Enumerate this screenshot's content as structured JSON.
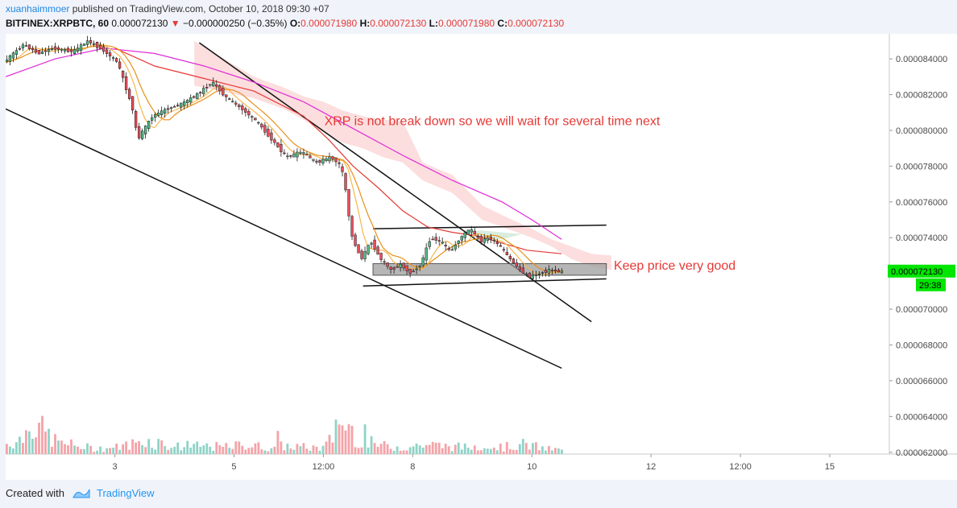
{
  "header": {
    "author": "xuanhaimmoer",
    "published_text": "published on TradingView.com, October 10, 2018 09:30 +07",
    "symbol": "BITFINEX:XRPBTC, 60",
    "last": "0.000072130",
    "change_arrow": "▼",
    "change": "−0.000000250 (−0.35%)",
    "open_label": "O:",
    "open": "0.000071980",
    "high_label": "H:",
    "high": "0.000072130",
    "low_label": "L:",
    "low": "0.000071980",
    "close_label": "C:",
    "close": "0.000072130"
  },
  "footer": {
    "created_with": "Created with",
    "brand": "TradingView"
  },
  "colors": {
    "up": "#53b987",
    "down": "#eb4d5c",
    "vol_up": "#8fd3c7",
    "vol_down": "#f4a3a8",
    "price_badge": "#00e600",
    "annotation": "#e53935",
    "sma_magenta": "#e02bd8",
    "ma_red": "#e53935",
    "ema_orange": "#f5a623",
    "cloud": "#fbd3d3"
  },
  "chart_data": {
    "type": "candlestick",
    "title": "BITFINEX:XRPBTC, 60",
    "x_labels": [
      {
        "t": 22,
        "label": "3"
      },
      {
        "t": 46,
        "label": "5"
      },
      {
        "t": 64,
        "label": "12:00"
      },
      {
        "t": 82,
        "label": "8"
      },
      {
        "t": 106,
        "label": "10"
      },
      {
        "t": 130,
        "label": "12"
      },
      {
        "t": 148,
        "label": "12:00"
      },
      {
        "t": 166,
        "label": "15"
      }
    ],
    "x_range": [
      0,
      178
    ],
    "ylim": [
      6.19e-05,
      8.54e-05
    ],
    "y_ticks": [
      "0.000084000",
      "0.000082000",
      "0.000080000",
      "0.000078000",
      "0.000076000",
      "0.000074000",
      "0.000072000",
      "0.000070000",
      "0.000068000",
      "0.000066000",
      "0.000064000",
      "0.000062000"
    ],
    "y_tick_values": [
      8.4e-05,
      8.2e-05,
      8e-05,
      7.8e-05,
      7.6e-05,
      7.4e-05,
      7.2e-05,
      7e-05,
      6.8e-05,
      6.6e-05,
      6.4e-05,
      6.2e-05
    ],
    "current_price": {
      "value": 7.213e-05,
      "label": "0.000072130",
      "countdown": "29:38"
    },
    "close_path": [
      [
        0,
        8.38e-05
      ],
      [
        4,
        8.48e-05
      ],
      [
        7,
        8.43e-05
      ],
      [
        10,
        8.46e-05
      ],
      [
        14,
        8.44e-05
      ],
      [
        17,
        8.5e-05
      ],
      [
        20,
        8.45e-05
      ],
      [
        23,
        8.38e-05
      ],
      [
        26,
        8.12e-05
      ],
      [
        27,
        7.95e-05
      ],
      [
        30,
        8.08e-05
      ],
      [
        33,
        8.12e-05
      ],
      [
        36,
        8.15e-05
      ],
      [
        39,
        8.2e-05
      ],
      [
        42,
        8.27e-05
      ],
      [
        45,
        8.18e-05
      ],
      [
        48,
        8.12e-05
      ],
      [
        51,
        8.05e-05
      ],
      [
        54,
        7.95e-05
      ],
      [
        57,
        7.85e-05
      ],
      [
        60,
        7.88e-05
      ],
      [
        63,
        7.82e-05
      ],
      [
        66,
        7.85e-05
      ],
      [
        68,
        7.8e-05
      ],
      [
        69,
        7.65e-05
      ],
      [
        70,
        7.42e-05
      ],
      [
        72,
        7.28e-05
      ],
      [
        74,
        7.38e-05
      ],
      [
        76,
        7.28e-05
      ],
      [
        78,
        7.22e-05
      ],
      [
        80,
        7.25e-05
      ],
      [
        82,
        7.2e-05
      ],
      [
        84,
        7.25e-05
      ],
      [
        86,
        7.4e-05
      ],
      [
        88,
        7.38e-05
      ],
      [
        90,
        7.32e-05
      ],
      [
        92,
        7.4e-05
      ],
      [
        94,
        7.45e-05
      ],
      [
        96,
        7.38e-05
      ],
      [
        98,
        7.4e-05
      ],
      [
        100,
        7.35e-05
      ],
      [
        102,
        7.28e-05
      ],
      [
        104,
        7.22e-05
      ],
      [
        106,
        7.18e-05
      ],
      [
        108,
        7.2e-05
      ],
      [
        110,
        7.22e-05
      ],
      [
        112,
        7.21e-05
      ]
    ],
    "volume_profile": [
      [
        0,
        15
      ],
      [
        3,
        22
      ],
      [
        5,
        45
      ],
      [
        8,
        30
      ],
      [
        10,
        18
      ],
      [
        14,
        12
      ],
      [
        18,
        8
      ],
      [
        22,
        10
      ],
      [
        25,
        14
      ],
      [
        27,
        20
      ],
      [
        30,
        18
      ],
      [
        33,
        12
      ],
      [
        36,
        10
      ],
      [
        40,
        12
      ],
      [
        44,
        10
      ],
      [
        48,
        14
      ],
      [
        52,
        10
      ],
      [
        56,
        12
      ],
      [
        60,
        10
      ],
      [
        64,
        9
      ],
      [
        68,
        48
      ],
      [
        70,
        30
      ],
      [
        72,
        18
      ],
      [
        76,
        12
      ],
      [
        80,
        10
      ],
      [
        84,
        14
      ],
      [
        88,
        12
      ],
      [
        92,
        10
      ],
      [
        96,
        12
      ],
      [
        100,
        10
      ],
      [
        104,
        14
      ],
      [
        106,
        12
      ],
      [
        108,
        8
      ],
      [
        112,
        6
      ]
    ],
    "overlays": {
      "magenta_ma": [
        [
          0,
          8.3e-05
        ],
        [
          10,
          8.4e-05
        ],
        [
          20,
          8.46e-05
        ],
        [
          30,
          8.43e-05
        ],
        [
          40,
          8.36e-05
        ],
        [
          50,
          8.27e-05
        ],
        [
          60,
          8.16e-05
        ],
        [
          70,
          8.01e-05
        ],
        [
          80,
          7.86e-05
        ],
        [
          90,
          7.72e-05
        ],
        [
          100,
          7.6e-05
        ],
        [
          106,
          7.5e-05
        ],
        [
          112,
          7.39e-05
        ]
      ],
      "red_ma": [
        [
          22,
          8.46e-05
        ],
        [
          30,
          8.36e-05
        ],
        [
          40,
          8.29e-05
        ],
        [
          50,
          8.22e-05
        ],
        [
          60,
          8.08e-05
        ],
        [
          65,
          7.95e-05
        ],
        [
          70,
          7.8e-05
        ],
        [
          75,
          7.68e-05
        ],
        [
          80,
          7.55e-05
        ],
        [
          85,
          7.46e-05
        ],
        [
          90,
          7.43e-05
        ],
        [
          95,
          7.41e-05
        ],
        [
          100,
          7.37e-05
        ],
        [
          105,
          7.33e-05
        ],
        [
          112,
          7.31e-05
        ]
      ]
    },
    "cloud_top": [
      [
        38,
        8.5e-05
      ],
      [
        50,
        8.3e-05
      ],
      [
        56,
        8.24e-05
      ],
      [
        60,
        8.19e-05
      ],
      [
        64,
        8.16e-05
      ],
      [
        68,
        8.11e-05
      ],
      [
        72,
        8.08e-05
      ],
      [
        76,
        8.06e-05
      ],
      [
        80,
        8.05e-05
      ],
      [
        84,
        7.82e-05
      ],
      [
        90,
        7.75e-05
      ],
      [
        96,
        7.58e-05
      ],
      [
        102,
        7.5e-05
      ],
      [
        106,
        7.45e-05
      ],
      [
        110,
        7.39e-05
      ],
      [
        114,
        7.35e-05
      ],
      [
        118,
        7.31e-05
      ],
      [
        122,
        7.3e-05
      ]
    ],
    "cloud_bottom": [
      [
        38,
        8.25e-05
      ],
      [
        50,
        8.18e-05
      ],
      [
        56,
        8.12e-05
      ],
      [
        60,
        8.06e-05
      ],
      [
        64,
        7.99e-05
      ],
      [
        68,
        7.93e-05
      ],
      [
        72,
        7.9e-05
      ],
      [
        76,
        7.85e-05
      ],
      [
        80,
        7.82e-05
      ],
      [
        84,
        7.72e-05
      ],
      [
        90,
        7.65e-05
      ],
      [
        96,
        7.5e-05
      ],
      [
        102,
        7.44e-05
      ],
      [
        106,
        7.4e-05
      ],
      [
        110,
        7.35e-05
      ],
      [
        114,
        7.28e-05
      ],
      [
        118,
        7.24e-05
      ],
      [
        122,
        7.22e-05
      ]
    ],
    "trendlines": [
      {
        "from": [
          0,
          8.12e-05
        ],
        "to": [
          112,
          6.67e-05
        ]
      },
      {
        "from": [
          39,
          8.49e-05
        ],
        "to": [
          118,
          6.93e-05
        ]
      },
      {
        "from": [
          74,
          7.45e-05
        ],
        "to": [
          121,
          7.47e-05
        ]
      },
      {
        "from": [
          72,
          7.13e-05
        ],
        "to": [
          121,
          7.17e-05
        ]
      }
    ],
    "support_box": {
      "x0": 74,
      "x1": 121,
      "y_top": 7.255e-05,
      "y_bottom": 7.19e-05
    },
    "annotations": [
      {
        "text": "XRP is not break down so we will wait for several time next",
        "t": 98,
        "y": 8.03e-05
      },
      {
        "text": "Keep price very good",
        "t": 122.5,
        "y": 7.22e-05
      }
    ]
  }
}
